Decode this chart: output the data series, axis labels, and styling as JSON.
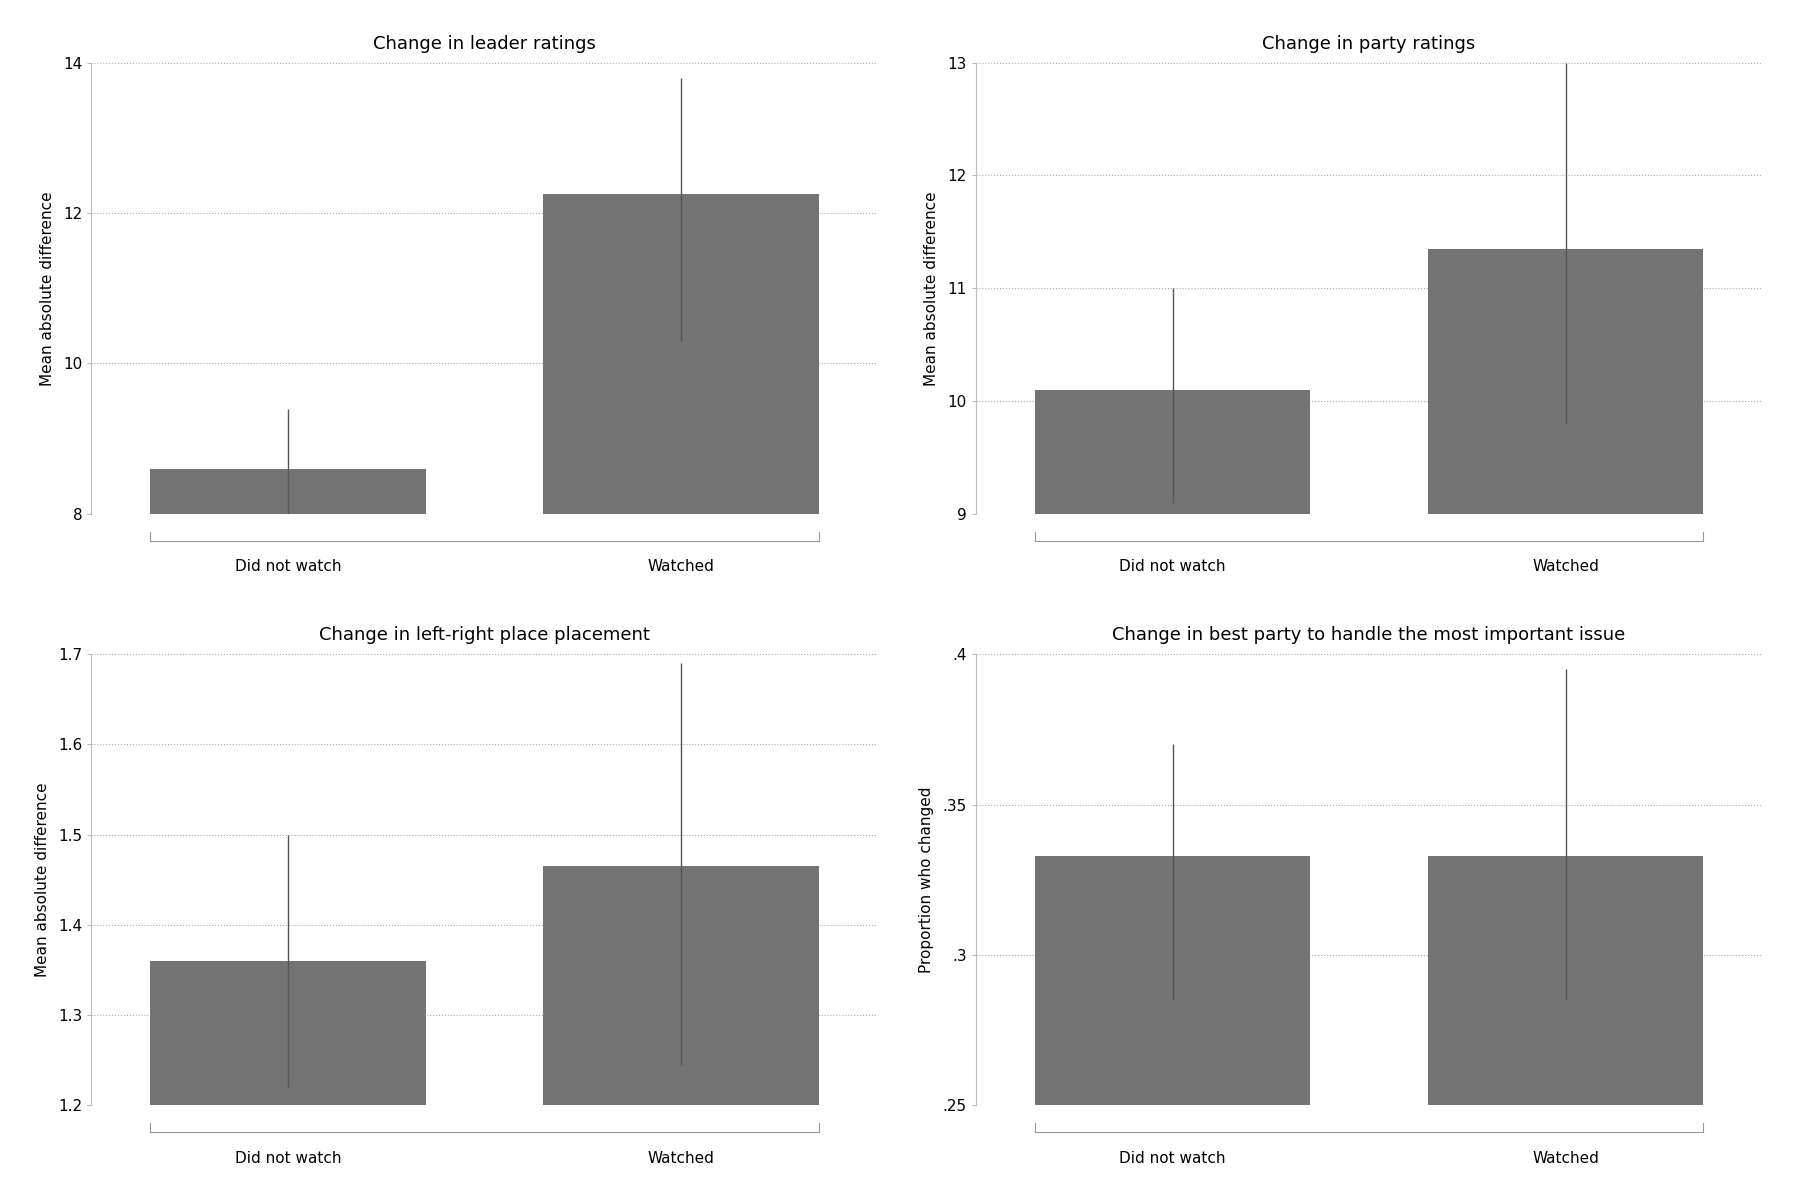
{
  "panels": [
    {
      "title": "Change in leader ratings",
      "ylabel": "Mean absolute difference",
      "categories": [
        "Did not watch",
        "Watched"
      ],
      "values": [
        8.6,
        12.25
      ],
      "ci_lower": [
        8.0,
        10.3
      ],
      "ci_upper": [
        9.4,
        13.8
      ],
      "ylim": [
        8.0,
        14.0
      ],
      "yticks": [
        8,
        10,
        12,
        14
      ],
      "yticklabels": [
        "8",
        "10",
        "12",
        "14"
      ]
    },
    {
      "title": "Change in party ratings",
      "ylabel": "Mean absolute difference",
      "categories": [
        "Did not watch",
        "Watched"
      ],
      "values": [
        10.1,
        11.35
      ],
      "ci_lower": [
        9.1,
        9.8
      ],
      "ci_upper": [
        11.0,
        13.0
      ],
      "ylim": [
        9.0,
        13.0
      ],
      "yticks": [
        9,
        10,
        11,
        12,
        13
      ],
      "yticklabels": [
        "9",
        "10",
        "11",
        "12",
        "13"
      ]
    },
    {
      "title": "Change in left-right place placement",
      "ylabel": "Mean absolute difference",
      "categories": [
        "Did not watch",
        "Watched"
      ],
      "values": [
        1.36,
        1.465
      ],
      "ci_lower": [
        1.22,
        1.245
      ],
      "ci_upper": [
        1.5,
        1.69
      ],
      "ylim": [
        1.2,
        1.7
      ],
      "yticks": [
        1.2,
        1.3,
        1.4,
        1.5,
        1.6,
        1.7
      ],
      "yticklabels": [
        "1.2",
        "1.3",
        "1.4",
        "1.5",
        "1.6",
        "1.7"
      ]
    },
    {
      "title": "Change in best party to handle the most important issue",
      "ylabel": "Proportion who changed",
      "categories": [
        "Did not watch",
        "Watched"
      ],
      "values": [
        0.333,
        0.333
      ],
      "ci_lower": [
        0.285,
        0.285
      ],
      "ci_upper": [
        0.37,
        0.395
      ],
      "ylim": [
        0.25,
        0.4
      ],
      "yticks": [
        0.25,
        0.3,
        0.35,
        0.4
      ],
      "yticklabels": [
        ".25",
        ".3",
        ".35",
        ".4"
      ]
    }
  ],
  "bar_color": "#737373",
  "error_color": "#555555",
  "background_color": "#ffffff",
  "bar_width": 0.7,
  "title_fontsize": 13,
  "label_fontsize": 11,
  "tick_fontsize": 11,
  "bracket_color": "#999999"
}
